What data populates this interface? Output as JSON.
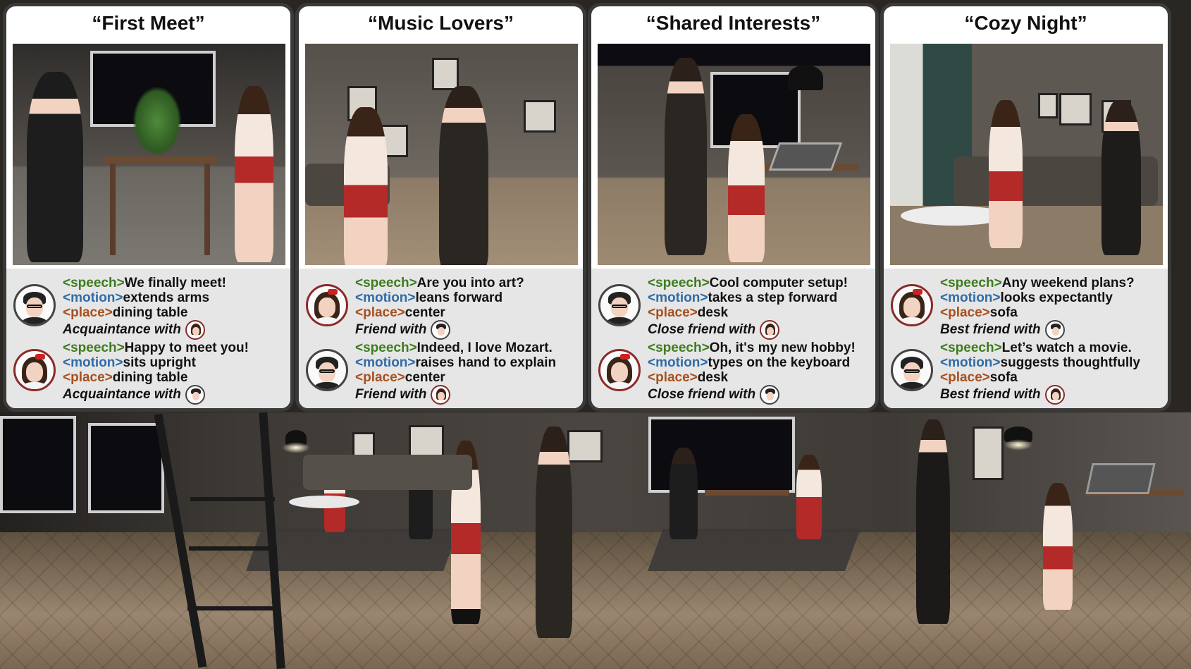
{
  "panels": [
    {
      "title": "“First Meet”",
      "entries": [
        {
          "avatar": "boy",
          "speech_tag": "<speech>",
          "speech": "We finally meet!",
          "motion_tag": "<motion>",
          "motion": "extends arms",
          "place_tag": "<place>",
          "place": "dining table",
          "relation": "Acquaintance with",
          "relation_avatar": "girl"
        },
        {
          "avatar": "girl",
          "speech_tag": "<speech>",
          "speech": "Happy to meet you!",
          "motion_tag": "<motion>",
          "motion": "sits upright",
          "place_tag": "<place>",
          "place": "dining table",
          "relation": "Acquaintance with",
          "relation_avatar": "boy"
        }
      ]
    },
    {
      "title": "“Music Lovers”",
      "entries": [
        {
          "avatar": "girl",
          "speech_tag": "<speech>",
          "speech": "Are you into art?",
          "motion_tag": "<motion>",
          "motion": "leans forward",
          "place_tag": "<place>",
          "place": "center",
          "relation": "Friend with",
          "relation_avatar": "boy"
        },
        {
          "avatar": "boy",
          "speech_tag": "<speech>",
          "speech": "Indeed, I love Mozart.",
          "motion_tag": "<motion>",
          "motion": "raises hand to explain",
          "place_tag": "<place>",
          "place": "center",
          "relation": "Friend with",
          "relation_avatar": "girl"
        }
      ]
    },
    {
      "title": "“Shared Interests”",
      "entries": [
        {
          "avatar": "boy",
          "speech_tag": "<speech>",
          "speech": "Cool computer setup!",
          "motion_tag": "<motion>",
          "motion": "takes a step forward",
          "place_tag": "<place>",
          "place": "desk",
          "relation": "Close friend with",
          "relation_avatar": "girl"
        },
        {
          "avatar": "girl",
          "speech_tag": "<speech>",
          "speech": "Oh, it's my new hobby!",
          "motion_tag": "<motion>",
          "motion": "types on the keyboard",
          "place_tag": "<place>",
          "place": "desk",
          "relation": "Close friend with",
          "relation_avatar": "boy"
        }
      ]
    },
    {
      "title": "“Cozy Night”",
      "entries": [
        {
          "avatar": "girl",
          "speech_tag": "<speech>",
          "speech": "Any weekend plans?",
          "motion_tag": "<motion>",
          "motion": "looks expectantly",
          "place_tag": "<place>",
          "place": "sofa",
          "relation": "Best friend with",
          "relation_avatar": "boy"
        },
        {
          "avatar": "boy",
          "speech_tag": "<speech>",
          "speech": "Let’s watch a movie.",
          "motion_tag": "<motion>",
          "motion": "suggests thoughtfully",
          "place_tag": "<place>",
          "place": "sofa",
          "relation": "Best friend with",
          "relation_avatar": "girl"
        }
      ]
    }
  ],
  "colors": {
    "speech_tag": "#3e7c1f",
    "motion_tag": "#2f6ca8",
    "place_tag": "#a8501e",
    "panel_border": "#3a3a3a",
    "dialog_bg": "#e6e6e6"
  },
  "icons": [
    "boy-avatar-icon",
    "girl-avatar-icon"
  ]
}
